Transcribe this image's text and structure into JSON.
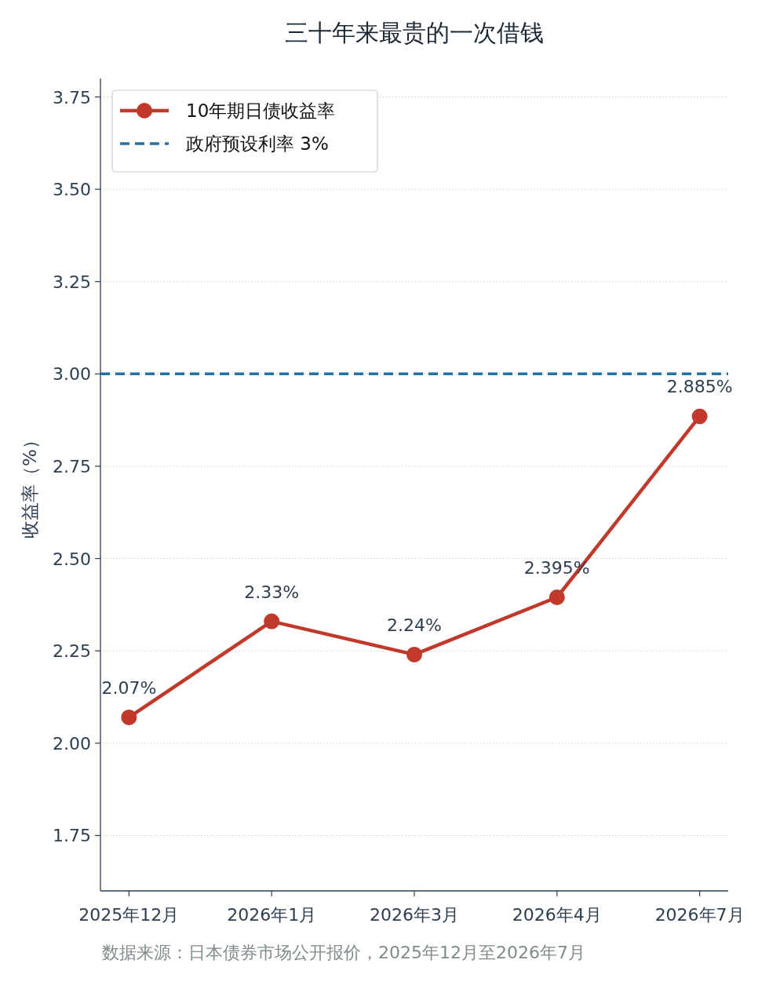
{
  "chart_data": {
    "type": "line",
    "title": "三十年来最贵的一次借钱",
    "ylabel": "收益率（%）",
    "categories": [
      "2025年12月",
      "2026年1月",
      "2026年3月",
      "2026年4月",
      "2026年7月"
    ],
    "series": [
      {
        "name": "10年期日债收益率",
        "color": "#c0392b",
        "values": [
          2.07,
          2.33,
          2.24,
          2.395,
          2.885
        ],
        "value_labels": [
          "2.07%",
          "2.33%",
          "2.24%",
          "2.395%",
          "2.885%"
        ]
      }
    ],
    "ylim": [
      1.6,
      3.8
    ],
    "yticks": [
      {
        "value": 1.75,
        "label": "1.75"
      },
      {
        "value": 2,
        "label": "2.00"
      },
      {
        "value": 2.25,
        "label": "2.25"
      },
      {
        "value": 2.5,
        "label": "2.50"
      },
      {
        "value": 2.75,
        "label": "2.75"
      },
      {
        "value": 3,
        "label": "3.00"
      },
      {
        "value": 3.25,
        "label": "3.25"
      },
      {
        "value": 3.5,
        "label": "3.50"
      },
      {
        "value": 3.75,
        "label": "3.75"
      }
    ],
    "ref_lines": [
      {
        "axis": "y",
        "value": 3,
        "label": "政府预设利率 3%",
        "color": "#2471a3",
        "line_style": "dashed"
      }
    ],
    "grid": "y",
    "legend": "top left",
    "marker": "circle",
    "line_style": "solid",
    "annotations": [
      "数据来源：日本债券市场公开报价，2025年12月至2026年7月"
    ]
  }
}
